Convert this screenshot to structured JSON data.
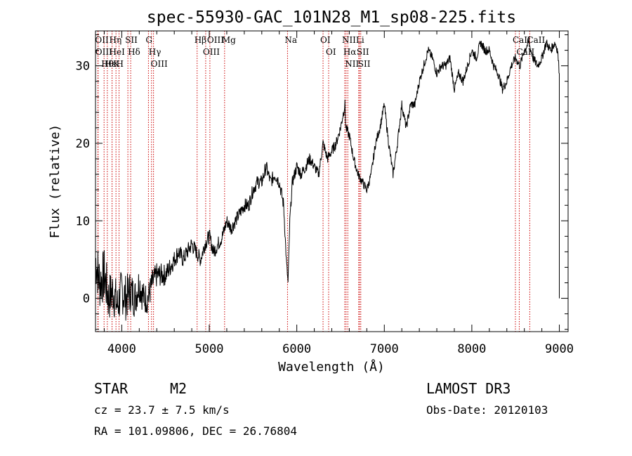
{
  "chart_data": {
    "type": "line",
    "title": "spec-55930-GAC_101N28_M1_sp08-225.fits",
    "xlabel": "Wavelength (Å)",
    "ylabel": "Flux (relative)",
    "xlim": [
      3700,
      9100
    ],
    "ylim": [
      -4.3,
      34.5
    ],
    "xticks": [
      4000,
      5000,
      6000,
      7000,
      8000,
      9000
    ],
    "yticks": [
      0,
      10,
      20,
      30
    ],
    "series": [
      {
        "name": "flux",
        "color": "#000000",
        "x": [
          3700,
          3750,
          3800,
          3850,
          3900,
          3950,
          4000,
          4050,
          4100,
          4150,
          4200,
          4250,
          4300,
          4350,
          4400,
          4450,
          4500,
          4550,
          4600,
          4650,
          4700,
          4750,
          4800,
          4850,
          4900,
          4950,
          5000,
          5050,
          5100,
          5150,
          5200,
          5250,
          5300,
          5350,
          5400,
          5450,
          5500,
          5550,
          5600,
          5650,
          5700,
          5750,
          5800,
          5850,
          5880,
          5900,
          5920,
          5950,
          6000,
          6050,
          6100,
          6150,
          6200,
          6250,
          6300,
          6350,
          6400,
          6450,
          6500,
          6550,
          6560,
          6600,
          6650,
          6700,
          6750,
          6800,
          6850,
          6900,
          6950,
          7000,
          7050,
          7100,
          7150,
          7200,
          7250,
          7300,
          7350,
          7400,
          7450,
          7500,
          7550,
          7600,
          7650,
          7700,
          7750,
          7800,
          7850,
          7900,
          7950,
          8000,
          8050,
          8100,
          8150,
          8200,
          8250,
          8300,
          8350,
          8400,
          8450,
          8500,
          8550,
          8600,
          8650,
          8700,
          8750,
          8800,
          8850,
          8900,
          8950,
          8980,
          9000
        ],
        "y": [
          5,
          2,
          3,
          0,
          1,
          -1,
          1,
          0,
          1,
          0,
          2,
          0,
          0,
          2,
          3,
          3,
          3,
          4,
          5,
          6,
          5,
          6,
          7,
          6,
          5,
          7,
          8,
          6,
          7,
          8,
          10,
          9,
          10,
          11,
          12,
          12,
          14,
          15,
          15,
          17,
          15,
          16,
          15,
          12,
          5,
          2,
          10,
          15,
          17,
          16,
          17,
          18,
          17,
          16,
          20,
          18,
          19,
          20,
          22,
          25,
          22,
          21,
          18,
          16,
          15,
          14,
          16,
          20,
          22,
          25,
          20,
          16,
          20,
          25,
          22,
          25,
          25,
          28,
          30,
          32,
          31,
          29,
          30,
          30,
          31,
          27,
          29,
          28,
          30,
          32,
          31,
          33,
          32,
          32,
          30,
          29,
          27,
          28,
          30,
          31,
          30,
          32,
          33,
          31,
          30,
          31,
          33,
          32,
          33,
          32,
          29
        ],
        "noise": [
          3.5,
          3.5,
          3.5,
          3.2,
          3.2,
          3,
          3,
          3,
          2.8,
          2.6,
          2.4,
          2.2,
          2,
          1.8,
          1.6,
          1.5,
          1.4,
          1.3,
          1.2,
          1.2,
          1.1,
          1.1,
          1.1,
          1,
          1,
          1,
          1,
          1,
          1,
          1,
          0.9,
          0.9,
          0.9,
          0.9,
          0.9,
          0.9,
          0.9,
          0.9,
          0.9,
          0.9,
          0.9,
          0.9,
          0.9,
          0.9,
          0.5,
          0.5,
          0.5,
          0.8,
          0.8,
          0.8,
          0.8,
          0.8,
          0.7,
          0.7,
          0.7,
          0.7,
          0.7,
          0.7,
          0.7,
          0.7,
          0.7,
          0.7,
          0.6,
          0.6,
          0.6,
          0.6,
          0.6,
          0.6,
          0.6,
          0.6,
          0.6,
          0.6,
          0.6,
          0.6,
          0.6,
          0.6,
          0.6,
          0.6,
          0.6,
          0.6,
          0.6,
          0.6,
          0.6,
          0.6,
          0.6,
          0.6,
          0.6,
          0.6,
          0.6,
          0.6,
          0.6,
          0.6,
          0.6,
          0.6,
          0.6,
          0.6,
          0.6,
          0.6,
          0.6,
          0.6,
          0.6,
          0.6,
          0.6,
          0.6,
          0.6,
          0.6,
          0.6,
          0.6,
          0.6,
          0.6,
          0.6
        ]
      }
    ],
    "spectral_lines": [
      {
        "name": "Hθ",
        "wavelength": 3798
      },
      {
        "name": "OII",
        "wavelength": 3727
      },
      {
        "name": "OIII",
        "wavelength": 3730
      },
      {
        "name": "Hε",
        "wavelength": 3835
      },
      {
        "name": "Hη",
        "wavelength": 3889
      },
      {
        "name": "K",
        "wavelength": 3934
      },
      {
        "name": "H",
        "wavelength": 3969
      },
      {
        "name": "HeI",
        "wavelength": 3889
      },
      {
        "name": "SII",
        "wavelength": 4070
      },
      {
        "name": "Hδ",
        "wavelength": 4102
      },
      {
        "name": "OIII",
        "wavelength": 4363
      },
      {
        "name": "Hγ",
        "wavelength": 4340
      },
      {
        "name": "G",
        "wavelength": 4305
      },
      {
        "name": "Hβ",
        "wavelength": 4861
      },
      {
        "name": "OIII",
        "wavelength": 4959
      },
      {
        "name": "OIII",
        "wavelength": 5007
      },
      {
        "name": "Mg",
        "wavelength": 5175
      },
      {
        "name": "Na",
        "wavelength": 5894
      },
      {
        "name": "OI",
        "wavelength": 6300
      },
      {
        "name": "OI",
        "wavelength": 6364
      },
      {
        "name": "NII",
        "wavelength": 6548
      },
      {
        "name": "Hα",
        "wavelength": 6563
      },
      {
        "name": "NII",
        "wavelength": 6583
      },
      {
        "name": "Li",
        "wavelength": 6708
      },
      {
        "name": "SII",
        "wavelength": 6716
      },
      {
        "name": "SII",
        "wavelength": 6731
      },
      {
        "name": "CaII",
        "wavelength": 8498
      },
      {
        "name": "CaII",
        "wavelength": 8542
      },
      {
        "name": "CaII",
        "wavelength": 8662
      }
    ]
  },
  "info": {
    "object_class": "STAR",
    "subclass": "M2",
    "survey": "LAMOST DR3",
    "redshift": "cz = 23.7 ± 7.5 km/s",
    "obs_date": "Obs-Date: 20120103",
    "coords": "RA = 101.09806, DEC =  26.76804"
  },
  "colors": {
    "line_marker": "#cc0000",
    "spectrum": "#000000",
    "frame": "#000000"
  }
}
